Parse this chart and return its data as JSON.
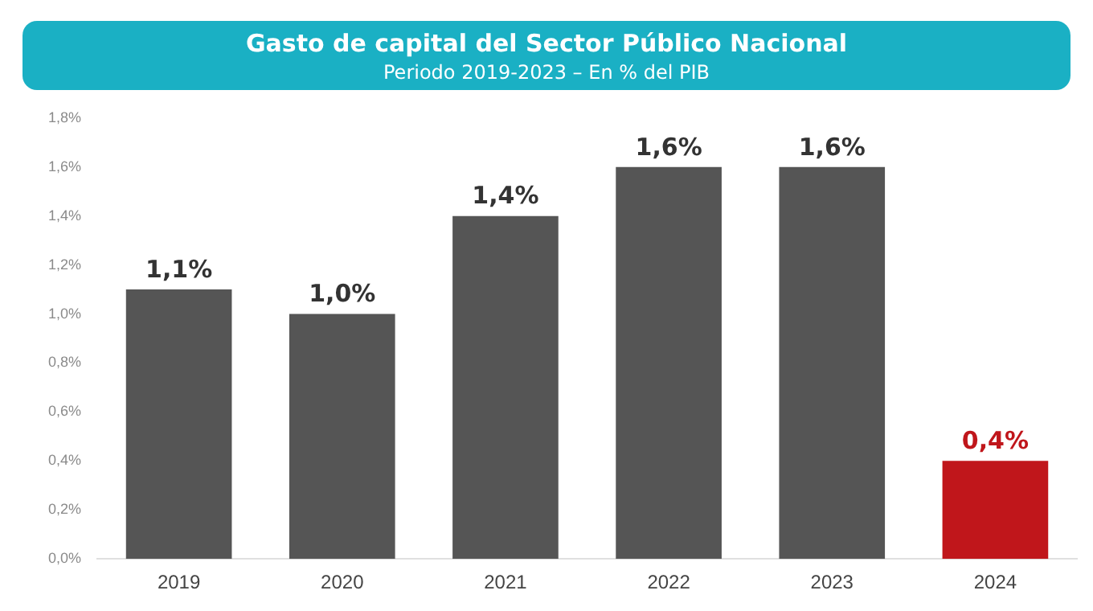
{
  "chart_data": {
    "type": "bar",
    "title": "Gasto de capital del Sector Público Nacional",
    "subtitle": "Periodo 2019-2023 – En % del PIB",
    "categories": [
      "2019",
      "2020",
      "2021",
      "2022",
      "2023",
      "2024"
    ],
    "values": [
      1.1,
      1.0,
      1.4,
      1.6,
      1.6,
      0.4
    ],
    "colors": [
      "#555555",
      "#555555",
      "#555555",
      "#555555",
      "#555555",
      "#c0161b"
    ],
    "value_labels": [
      "1,1%",
      "1,0%",
      "1,4%",
      "1,6%",
      "1,6%",
      "0,4%"
    ],
    "ylim": [
      0,
      1.8
    ],
    "yticks": [
      {
        "value": 0,
        "label": "0,0%"
      },
      {
        "value": 0.2,
        "label": "0,2%"
      },
      {
        "value": 0.4,
        "label": "0,4%"
      },
      {
        "value": 0.6,
        "label": "0,6%"
      },
      {
        "value": 0.8,
        "label": "0,8%"
      },
      {
        "value": 1.0,
        "label": "1,0%"
      },
      {
        "value": 1.2,
        "label": "1,2%"
      },
      {
        "value": 1.4,
        "label": "1,4%"
      },
      {
        "value": 1.6,
        "label": "1,6%"
      },
      {
        "value": 1.8,
        "label": "1,8%"
      }
    ],
    "grid": false,
    "legend": false
  }
}
